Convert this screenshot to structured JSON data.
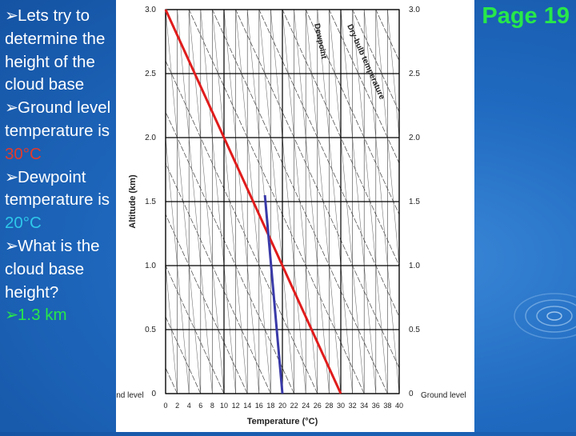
{
  "page_label": "Page 19",
  "bullets": [
    {
      "text": "Lets try to determine the height of the cloud base"
    },
    {
      "prefix": "Ground level temperature is ",
      "value": "30°C"
    },
    {
      "prefix": "Dewpoint temperature is ",
      "value": "20°C"
    },
    {
      "text": "What is the cloud base height?"
    },
    {
      "text": "1.3 km"
    }
  ],
  "icons": {
    "bullet": "arrow-bullet-icon",
    "decor": "water-ripple-icon"
  },
  "colors": {
    "background": "#1f6ac0",
    "page_label": "#27e84a",
    "ground_temp": "#e23a2c",
    "dewpoint_temp": "#2ec7ea",
    "dry_line": "#e01c1c",
    "dew_line": "#3a3aa8"
  },
  "chart_data": {
    "type": "line",
    "xlabel": "Temperature (°C)",
    "ylabel": "Altitude (km)",
    "xlim": [
      0,
      40
    ],
    "ylim": [
      0,
      3.0
    ],
    "x_ticks": [
      "0",
      "2",
      "4",
      "6",
      "8",
      "10",
      "12",
      "14",
      "16",
      "18",
      "20",
      "22",
      "24",
      "26",
      "28",
      "30",
      "32",
      "34",
      "36",
      "38",
      "40"
    ],
    "y_ticks_left": [
      "0",
      "0.5",
      "1.0",
      "1.5",
      "2.0",
      "2.5",
      "3.0"
    ],
    "y_ticks_right": [
      "0",
      "0.5",
      "1.0",
      "1.5",
      "2.0",
      "2.5",
      "3.0"
    ],
    "ground_label": "Ground level",
    "ground_label_left": "Ground level",
    "dewpoint_label": "Dewpoint",
    "drybulb_label": "Dry-bulb temperature",
    "grid": true,
    "series": [
      {
        "values": [
          [
            30,
            0
          ],
          [
            0,
            3.0
          ]
        ]
      },
      {
        "values": [
          [
            20,
            0
          ],
          [
            17,
            1.55
          ]
        ]
      }
    ]
  }
}
